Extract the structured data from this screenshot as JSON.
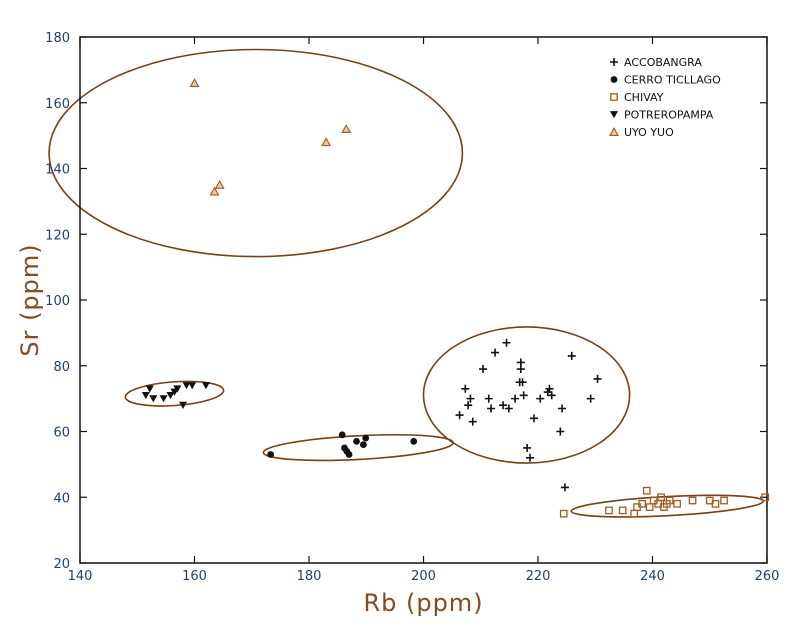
{
  "chart_data": {
    "type": "scatter",
    "title": "",
    "xlabel": "Rb (ppm)",
    "ylabel": "Sr (ppm)",
    "xlim": [
      140,
      260
    ],
    "ylim": [
      20,
      180
    ],
    "xticks": [
      140,
      160,
      180,
      200,
      220,
      240,
      260
    ],
    "yticks": [
      20,
      40,
      60,
      80,
      100,
      120,
      140,
      160,
      180
    ],
    "grid": false,
    "legend_position": "top-right",
    "colors": {
      "axes": "#111111",
      "tick_labels": "#1f3f7a",
      "axis_titles": "#8b4a1c",
      "ellipses": "#7a3f12",
      "orange_markers": "#a45a1e",
      "dark_markers": "#111111"
    },
    "series": [
      {
        "name": "ACCOBANGRA",
        "marker": "plus",
        "color": "#111111",
        "x": [
          206.3,
          207.3,
          207.8,
          208.2,
          208.6,
          210.4,
          211.4,
          211.8,
          212.5,
          213.9,
          214.5,
          214.9,
          216.0,
          216.8,
          217.0,
          217.0,
          217.3,
          217.5,
          218.1,
          218.6,
          219.3,
          220.4,
          221.7,
          222.0,
          222.4,
          223.9,
          224.2,
          224.7,
          225.9,
          229.2,
          230.4
        ],
        "y": [
          65,
          73,
          68,
          70,
          63,
          79,
          70,
          67,
          84,
          68,
          87,
          67,
          70,
          75,
          81,
          79,
          75,
          71,
          55,
          52,
          64,
          70,
          72,
          73,
          71,
          60,
          67,
          43,
          83,
          70,
          76
        ]
      },
      {
        "name": "CERRO TICLLAGO",
        "marker": "circle",
        "color": "#111111",
        "x": [
          173.3,
          185.8,
          186.2,
          186.6,
          187.0,
          188.3,
          189.5,
          189.9,
          198.3
        ],
        "y": [
          53,
          59,
          55,
          54,
          53,
          57,
          56,
          58,
          57
        ]
      },
      {
        "name": "CHIVAY",
        "marker": "square",
        "color": "#a45a1e",
        "x": [
          224.5,
          232.4,
          234.8,
          236.8,
          237.3,
          238.2,
          239.0,
          239.5,
          240.2,
          241.0,
          241.5,
          242.0,
          242.5,
          243.0,
          244.3,
          247.0,
          250.0,
          251.0,
          252.5,
          259.7
        ],
        "y": [
          35,
          36,
          36,
          35,
          37,
          38,
          42,
          37,
          39,
          38,
          40,
          37,
          38,
          39,
          38,
          39,
          39,
          38,
          39,
          40
        ]
      },
      {
        "name": "POTREROPAMPA",
        "marker": "triangle-down",
        "color": "#111111",
        "x": [
          151.5,
          152.2,
          152.8,
          154.6,
          155.8,
          156.5,
          157.0,
          158.0,
          158.6,
          159.6,
          162.0
        ],
        "y": [
          71,
          73,
          70,
          70,
          71,
          72,
          73,
          68,
          74,
          74,
          74
        ]
      },
      {
        "name": "UYO YUO",
        "marker": "triangle-up",
        "color": "#a45a1e",
        "x": [
          160.0,
          163.5,
          164.4,
          183.0,
          186.5
        ],
        "y": [
          166,
          133,
          135,
          148,
          152
        ]
      }
    ],
    "ellipses": [
      {
        "group": "UYO YUO",
        "cx": 170.7,
        "cy": 144.7,
        "rx": 36.1,
        "ry": 31.5,
        "angle": 0
      },
      {
        "group": "POTREROPAMPA",
        "cx": 156.5,
        "cy": 71.5,
        "rx": 8.6,
        "ry": 3.6,
        "angle": -4
      },
      {
        "group": "CERRO TICLLAGO",
        "cx": 188.6,
        "cy": 55.1,
        "rx": 16.6,
        "ry": 3.6,
        "angle": -3
      },
      {
        "group": "ACCOBANGRA",
        "cx": 218.0,
        "cy": 71.1,
        "rx": 18.0,
        "ry": 20.7,
        "angle": 0
      },
      {
        "group": "CHIVAY",
        "cx": 242.6,
        "cy": 37.3,
        "rx": 16.8,
        "ry": 2.9,
        "angle": -3
      }
    ]
  }
}
